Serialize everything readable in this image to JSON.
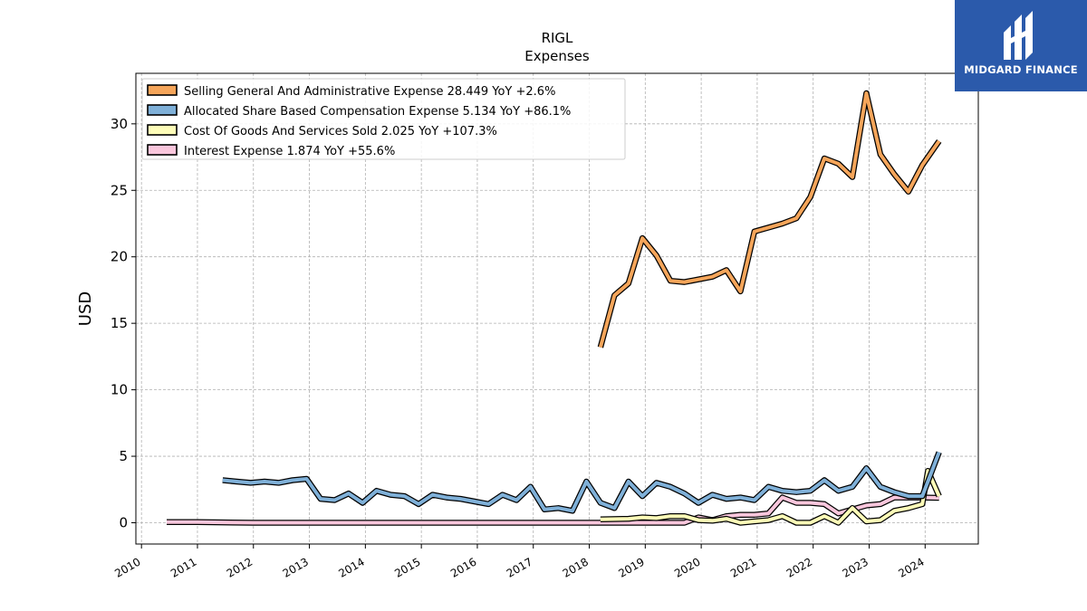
{
  "logo": {
    "text": "MIDGARD FINANCE",
    "icon": "midgard-finance-logo-icon",
    "color": "#2b5aab"
  },
  "chart_data": {
    "type": "line",
    "title": "RIGL",
    "subtitle": "Expenses",
    "ylabel": "USD",
    "xlabel": "",
    "xlim": [
      2009.9,
      2024.95
    ],
    "ylim": [
      -1.6,
      33.8
    ],
    "x_ticks": [
      "2010",
      "2011",
      "2012",
      "2013",
      "2014",
      "2015",
      "2016",
      "2017",
      "2018",
      "2019",
      "2020",
      "2021",
      "2022",
      "2023",
      "2024"
    ],
    "y_ticks": [
      "0",
      "5",
      "10",
      "15",
      "20",
      "25",
      "30"
    ],
    "grid": true,
    "legend_position": "top-left",
    "series": [
      {
        "name": "Selling General And Administrative Expense",
        "legend": "Selling General And Administrative Expense  28.449 YoY +2.6%",
        "color": "#f5a55a",
        "points": [
          [
            2018.2,
            13.2
          ],
          [
            2018.45,
            17.1
          ],
          [
            2018.7,
            18.0
          ],
          [
            2018.95,
            21.4
          ],
          [
            2019.2,
            20.1
          ],
          [
            2019.45,
            18.2
          ],
          [
            2019.7,
            18.1
          ],
          [
            2019.95,
            18.3
          ],
          [
            2020.2,
            18.5
          ],
          [
            2020.45,
            19.0
          ],
          [
            2020.7,
            17.4
          ],
          [
            2020.95,
            21.9
          ],
          [
            2021.2,
            22.2
          ],
          [
            2021.45,
            22.5
          ],
          [
            2021.7,
            22.9
          ],
          [
            2021.95,
            24.5
          ],
          [
            2022.2,
            27.4
          ],
          [
            2022.45,
            27.0
          ],
          [
            2022.7,
            26.0
          ],
          [
            2022.95,
            32.3
          ],
          [
            2023.2,
            27.7
          ],
          [
            2023.45,
            26.2
          ],
          [
            2023.7,
            24.9
          ],
          [
            2023.95,
            26.9
          ],
          [
            2024.25,
            28.7
          ]
        ]
      },
      {
        "name": "Allocated Share Based Compensation Expense",
        "legend": "Allocated Share Based Compensation Expense  5.134 YoY +86.1%",
        "color": "#7fb0d8",
        "points": [
          [
            2011.45,
            3.2
          ],
          [
            2011.7,
            3.1
          ],
          [
            2011.95,
            3.0
          ],
          [
            2012.2,
            3.1
          ],
          [
            2012.45,
            3.0
          ],
          [
            2012.7,
            3.2
          ],
          [
            2012.95,
            3.3
          ],
          [
            2013.2,
            1.8
          ],
          [
            2013.45,
            1.7
          ],
          [
            2013.7,
            2.2
          ],
          [
            2013.95,
            1.5
          ],
          [
            2014.2,
            2.4
          ],
          [
            2014.45,
            2.1
          ],
          [
            2014.7,
            2.0
          ],
          [
            2014.95,
            1.4
          ],
          [
            2015.2,
            2.1
          ],
          [
            2015.45,
            1.9
          ],
          [
            2015.7,
            1.8
          ],
          [
            2015.95,
            1.6
          ],
          [
            2016.2,
            1.4
          ],
          [
            2016.45,
            2.1
          ],
          [
            2016.7,
            1.7
          ],
          [
            2016.95,
            2.7
          ],
          [
            2017.2,
            1.0
          ],
          [
            2017.45,
            1.1
          ],
          [
            2017.7,
            0.9
          ],
          [
            2017.95,
            3.1
          ],
          [
            2018.2,
            1.5
          ],
          [
            2018.45,
            1.1
          ],
          [
            2018.7,
            3.1
          ],
          [
            2018.95,
            2.0
          ],
          [
            2019.2,
            3.0
          ],
          [
            2019.45,
            2.7
          ],
          [
            2019.7,
            2.2
          ],
          [
            2019.95,
            1.5
          ],
          [
            2020.2,
            2.1
          ],
          [
            2020.45,
            1.8
          ],
          [
            2020.7,
            1.9
          ],
          [
            2020.95,
            1.7
          ],
          [
            2021.2,
            2.7
          ],
          [
            2021.45,
            2.4
          ],
          [
            2021.7,
            2.3
          ],
          [
            2021.95,
            2.4
          ],
          [
            2022.2,
            3.2
          ],
          [
            2022.45,
            2.4
          ],
          [
            2022.7,
            2.7
          ],
          [
            2022.95,
            4.1
          ],
          [
            2023.2,
            2.7
          ],
          [
            2023.45,
            2.3
          ],
          [
            2023.7,
            2.0
          ],
          [
            2023.95,
            2.0
          ],
          [
            2024.25,
            5.3
          ]
        ]
      },
      {
        "name": "Cost Of Goods And Services Sold",
        "legend": "Cost Of Goods And Services Sold  2.025 YoY +107.3%",
        "color": "#fdfcb8",
        "points": [
          [
            2018.2,
            0.25
          ],
          [
            2018.7,
            0.3
          ],
          [
            2018.95,
            0.4
          ],
          [
            2019.2,
            0.35
          ],
          [
            2019.45,
            0.5
          ],
          [
            2019.7,
            0.5
          ],
          [
            2019.95,
            0.2
          ],
          [
            2020.2,
            0.15
          ],
          [
            2020.45,
            0.3
          ],
          [
            2020.7,
            0.0
          ],
          [
            2020.95,
            0.1
          ],
          [
            2021.2,
            0.2
          ],
          [
            2021.45,
            0.5
          ],
          [
            2021.7,
            0.0
          ],
          [
            2021.95,
            0.0
          ],
          [
            2022.2,
            0.5
          ],
          [
            2022.45,
            0.0
          ],
          [
            2022.7,
            1.1
          ],
          [
            2022.95,
            0.1
          ],
          [
            2023.2,
            0.2
          ],
          [
            2023.45,
            0.9
          ],
          [
            2023.7,
            1.1
          ],
          [
            2023.95,
            1.4
          ],
          [
            2024.05,
            3.9
          ],
          [
            2024.25,
            2.0
          ]
        ]
      },
      {
        "name": "Interest Expense",
        "legend": "Interest Expense  1.874 YoY +55.6%",
        "color": "#f9c6dc",
        "points": [
          [
            2010.45,
            0.05
          ],
          [
            2011.0,
            0.05
          ],
          [
            2012.0,
            0.0
          ],
          [
            2013.0,
            0.0
          ],
          [
            2014.0,
            0.0
          ],
          [
            2015.0,
            0.0
          ],
          [
            2016.0,
            0.0
          ],
          [
            2017.0,
            0.0
          ],
          [
            2018.0,
            0.0
          ],
          [
            2019.0,
            0.0
          ],
          [
            2019.7,
            0.0
          ],
          [
            2019.95,
            0.4
          ],
          [
            2020.2,
            0.2
          ],
          [
            2020.45,
            0.5
          ],
          [
            2020.7,
            0.6
          ],
          [
            2020.95,
            0.6
          ],
          [
            2021.2,
            0.7
          ],
          [
            2021.45,
            1.9
          ],
          [
            2021.7,
            1.5
          ],
          [
            2021.95,
            1.5
          ],
          [
            2022.2,
            1.4
          ],
          [
            2022.45,
            0.7
          ],
          [
            2022.7,
            1.0
          ],
          [
            2022.95,
            1.3
          ],
          [
            2023.2,
            1.4
          ],
          [
            2023.45,
            1.9
          ],
          [
            2023.7,
            1.9
          ],
          [
            2023.95,
            1.9
          ],
          [
            2024.25,
            1.87
          ]
        ]
      }
    ]
  }
}
